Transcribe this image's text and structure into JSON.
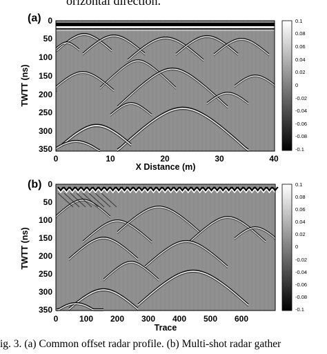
{
  "top_text": "orizontal direction.",
  "caption": "ig. 3. (a) Common offset radar profile. (b) Multi-shot radar gather",
  "panels": [
    {
      "label": "(a)",
      "ylabel": "TWTT (ns)",
      "xlabel": "X Distance (m)",
      "y_ticks": [
        "0",
        "50",
        "100",
        "150",
        "200",
        "250",
        "300",
        "350"
      ],
      "x_ticks": [
        "0",
        "10",
        "20",
        "30",
        "40"
      ],
      "colorbar_ticks": [
        "0.1",
        "0.08",
        "0.06",
        "0.04",
        "0.02",
        "0",
        "-0.02",
        "-0.04",
        "-0.06",
        "-0.08",
        "-0.1"
      ]
    },
    {
      "label": "(b)",
      "ylabel": "TWTT (ns)",
      "xlabel": "Trace",
      "y_ticks": [
        "0",
        "50",
        "100",
        "150",
        "200",
        "250",
        "300",
        "350"
      ],
      "x_ticks": [
        "0",
        "100",
        "200",
        "300",
        "400",
        "500",
        "600"
      ],
      "colorbar_ticks": [
        "0.1",
        "0.08",
        "0.06",
        "0.04",
        "0.02",
        "0",
        "-0.02",
        "-0.04",
        "-0.06",
        "-0.08",
        "-0.1"
      ]
    }
  ],
  "colors": {
    "background_gray": "#8f8f8f",
    "positive": "#ffffff",
    "negative": "#000000"
  }
}
